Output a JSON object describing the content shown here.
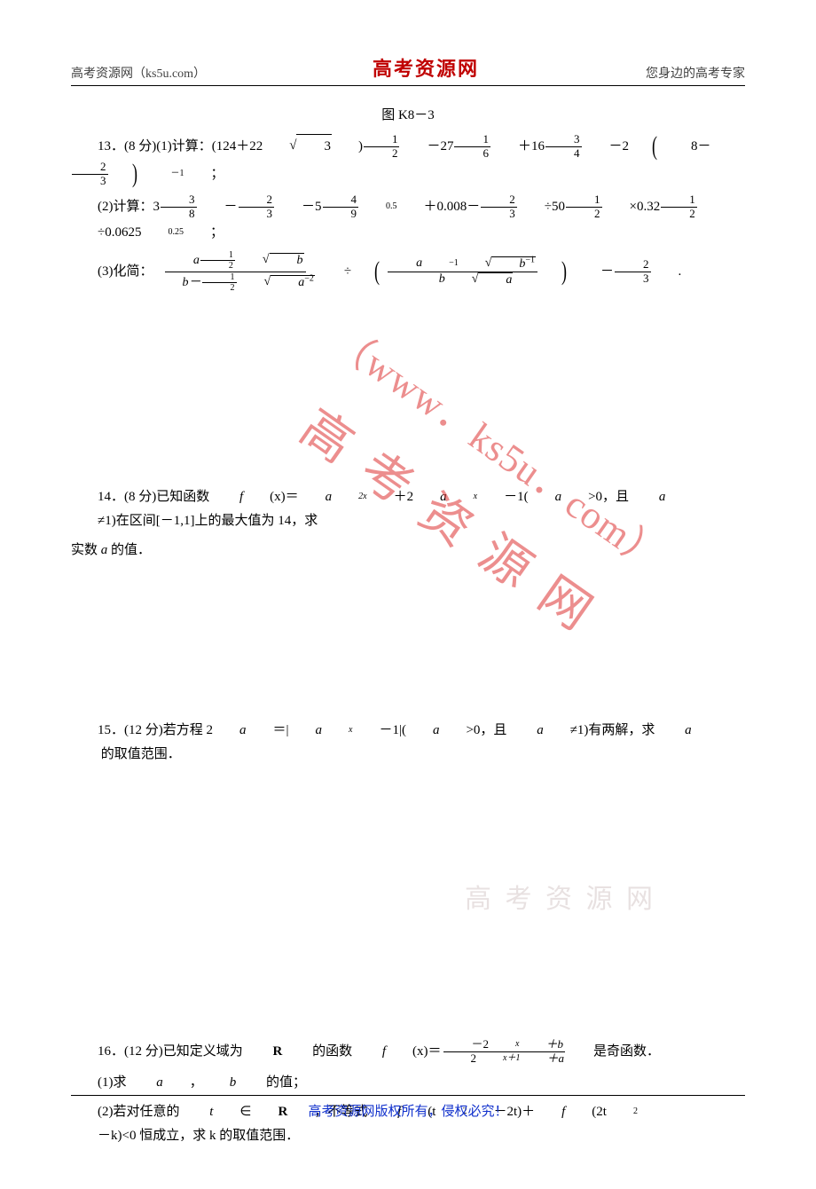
{
  "header": {
    "left": "高考资源网（ks5u.com）",
    "center": "高考资源网",
    "right": "您身边的高考专家"
  },
  "figLabel": "图 K8－3",
  "p13": {
    "lead": "13．(8 分)(1)计算：(124＋22",
    "sqrt3": "3",
    "rparen": ")",
    "f1n": "1",
    "f1d": "2",
    "minus1": "－27",
    "f2n": "1",
    "f2d": "6",
    "plus1": "＋16",
    "f3n": "3",
    "f3d": "4",
    "minus2": "－2",
    "bpL": "(",
    "eight": "8－",
    "f4n": "2",
    "f4d": "3",
    "bpR": ")",
    "expNeg1": "－1",
    "semi": "；"
  },
  "p13b": {
    "lead": "(2)计算：3",
    "fAn": "3",
    "fAd": "8",
    "m1": "－",
    "fBn": "2",
    "fBd": "3",
    "m2": "－5",
    "fCn": "4",
    "fCd": "9",
    "exp05": "0.5",
    "plus": "＋0.008－",
    "fDn": "2",
    "fDd": "3",
    "div": "÷50",
    "fEn": "1",
    "fEd": "2",
    "times": "×0.32",
    "fFn": "1",
    "fFd": "2",
    "div2": "÷0.0625",
    "exp025": "0.25",
    "semi": "；"
  },
  "p13c": {
    "lead": "(3)化简：",
    "bigNum_a": "a",
    "bigNum_f_n": "1",
    "bigNum_f_d": "2",
    "bigNum_sqrt": "b",
    "bigDen_b": "b－",
    "bigDen_f_n": "1",
    "bigDen_f_d": "2",
    "bigDen_sqrt": "a",
    "bigDen_exp": "−2",
    "div": "÷",
    "innerNum_a": "a",
    "innerNum_exp": "−1",
    "innerNum_sqrt": "b",
    "innerNum_sqrtexp": "−1",
    "innerDen_b": "b",
    "innerDen_sqrt": "a",
    "minus": "－",
    "lastn": "2",
    "lastd": "3",
    "dot": "."
  },
  "p14": {
    "line1a": "14．(8 分)已知函数 ",
    "fx": "f",
    "xarg": "(x)＝",
    "a": "a",
    "e1": "2x",
    "plus": "＋2",
    "a2": "a",
    "e2": "x",
    "tail1": "－1(",
    "a3": "a",
    "cond": ">0，且 ",
    "a4": "a",
    "neq": "≠1)在区间[－1,1]上的最大值为 14，求",
    "line2": "实数 ",
    "a5": "a",
    "line2b": " 的值．"
  },
  "p15": {
    "lead": "15．(12 分)若方程 2",
    "a": "a",
    "eq": "＝|",
    "a2": "a",
    "x": "x",
    "mid": "－1|(",
    "a3": "a",
    "cond": ">0，且 ",
    "a4": "a",
    "tail": "≠1)有两解，求 ",
    "a5": "a",
    "end": " 的取值范围．"
  },
  "p16": {
    "lead": "16．(12 分)已知定义域为 ",
    "R": "R",
    "mid": " 的函数 ",
    "f": "f",
    "xarg": "(x)＝",
    "numA": "－2",
    "numE": "x",
    "numB": "＋b",
    "denA": "2",
    "denE": "x＋1",
    "denB": "＋a",
    "tail": "是奇函数．",
    "sub1": "(1)求 ",
    "a": "a",
    "comma": "，",
    "b": "b",
    "sub1b": " 的值；",
    "sub2a": "(2)若对任意的 ",
    "t": "t",
    "in": "∈",
    "R2": "R",
    "sub2b": "，不等式 ",
    "f2": "f",
    "arg2": "(t",
    "e2": "2",
    "arg2b": "－2t)＋",
    "f3": "f",
    "arg3": "(2t",
    "e3": "2",
    "arg3b": "－k)<0 恒成立，求 k 的取值范围．"
  },
  "footer": "高考资源网版权所有，侵权必究！",
  "watermark": {
    "url": "（www．ks5u．com）",
    "cn": "高 考 资 源 网",
    "faded": "高 考 资 源 网"
  },
  "colors": {
    "text": "#000000",
    "headerRed": "#c00000",
    "footerBlue": "#1030cc",
    "wmRed": "#d33"
  }
}
